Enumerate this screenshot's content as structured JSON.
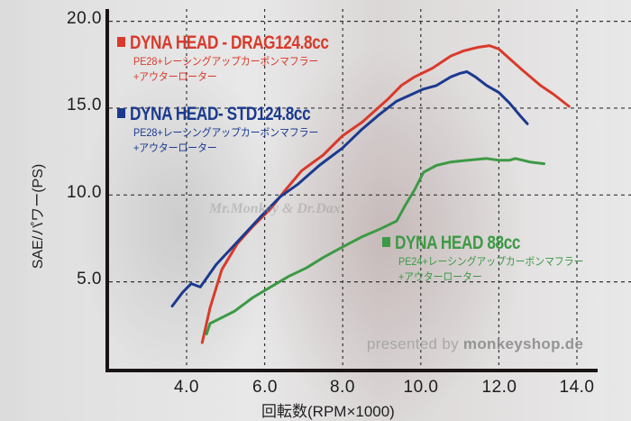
{
  "chart_data": {
    "type": "line",
    "title": "",
    "xlabel": "回転数(RPM×1000)",
    "ylabel": "SAE/パワー(PS)",
    "xlim": [
      3.0,
      14.5
    ],
    "ylim": [
      0,
      20.5
    ],
    "x_ticks": [
      "4.0",
      "6.0",
      "8.0",
      "10.0",
      "12.0",
      "14.0"
    ],
    "y_ticks": [
      "5.0",
      "10.0",
      "15.0",
      "20.0"
    ],
    "grid": true,
    "legend_position": "inline",
    "series": [
      {
        "name": "DYNA HEAD - DRAG124.8cc",
        "description": [
          "PE28+レーシングアップカーボンマフラー",
          "+アウターローター"
        ],
        "color": "#d93a2b",
        "points": [
          [
            4.4,
            1.5
          ],
          [
            4.6,
            3.5
          ],
          [
            4.9,
            5.7
          ],
          [
            5.3,
            7.2
          ],
          [
            5.7,
            8.2
          ],
          [
            6.15,
            9.2
          ],
          [
            6.5,
            10.2
          ],
          [
            6.95,
            11.4
          ],
          [
            7.5,
            12.3
          ],
          [
            7.99,
            13.4
          ],
          [
            8.5,
            14.2
          ],
          [
            9.15,
            15.5
          ],
          [
            9.5,
            16.3
          ],
          [
            9.84,
            16.8
          ],
          [
            10.3,
            17.3
          ],
          [
            10.77,
            18.0
          ],
          [
            11.1,
            18.3
          ],
          [
            11.46,
            18.5
          ],
          [
            11.76,
            18.6
          ],
          [
            12.0,
            18.4
          ],
          [
            12.15,
            18.1
          ],
          [
            12.6,
            17.2
          ],
          [
            13.07,
            16.3
          ],
          [
            13.4,
            15.8
          ],
          [
            13.8,
            15.1
          ]
        ]
      },
      {
        "name": "DYNA HEAD- STD124.8cc",
        "description": [
          "PE28+レーシングアップカーボンマフラー",
          "+アウターローター"
        ],
        "color": "#1b3a8f",
        "points": [
          [
            3.63,
            3.6
          ],
          [
            3.9,
            4.4
          ],
          [
            4.12,
            4.9
          ],
          [
            4.35,
            4.7
          ],
          [
            4.76,
            6.0
          ],
          [
            5.3,
            7.3
          ],
          [
            5.92,
            8.8
          ],
          [
            6.4,
            9.9
          ],
          [
            6.84,
            10.6
          ],
          [
            7.4,
            11.7
          ],
          [
            7.99,
            12.7
          ],
          [
            8.5,
            13.8
          ],
          [
            8.92,
            14.6
          ],
          [
            9.38,
            15.4
          ],
          [
            10.07,
            16.1
          ],
          [
            10.4,
            16.3
          ],
          [
            10.77,
            16.8
          ],
          [
            11.0,
            17.0
          ],
          [
            11.18,
            17.1
          ],
          [
            11.4,
            16.8
          ],
          [
            11.69,
            16.3
          ],
          [
            12.0,
            15.9
          ],
          [
            12.27,
            15.3
          ],
          [
            12.57,
            14.5
          ],
          [
            12.73,
            14.1
          ]
        ]
      },
      {
        "name": "DYNA HEAD  88cc",
        "description": [
          "PE24+レーシングアップカーボンマフラー",
          "+アウターローター"
        ],
        "color": "#3c9a45",
        "points": [
          [
            4.51,
            2.0
          ],
          [
            4.6,
            2.6
          ],
          [
            5.22,
            3.3
          ],
          [
            5.7,
            4.1
          ],
          [
            6.15,
            4.7
          ],
          [
            6.6,
            5.3
          ],
          [
            7.07,
            5.8
          ],
          [
            7.5,
            6.4
          ],
          [
            7.99,
            7.0
          ],
          [
            8.5,
            7.6
          ],
          [
            8.92,
            8.0
          ],
          [
            9.38,
            8.5
          ],
          [
            9.6,
            9.4
          ],
          [
            9.84,
            10.3
          ],
          [
            10.07,
            11.3
          ],
          [
            10.4,
            11.7
          ],
          [
            10.77,
            11.9
          ],
          [
            11.2,
            12.0
          ],
          [
            11.69,
            12.1
          ],
          [
            12.0,
            12.0
          ],
          [
            12.27,
            12.0
          ],
          [
            12.42,
            12.1
          ],
          [
            12.8,
            11.9
          ],
          [
            13.16,
            11.8
          ]
        ]
      }
    ]
  },
  "axes": {
    "y_ticks": [
      {
        "label": "20.0",
        "value": 20
      },
      {
        "label": "15.0",
        "value": 15
      },
      {
        "label": "10.0",
        "value": 10
      },
      {
        "label": "5.0",
        "value": 5
      }
    ],
    "x_ticks": [
      {
        "label": "4.0",
        "value": 4
      },
      {
        "label": "6.0",
        "value": 6
      },
      {
        "label": "8.0",
        "value": 8
      },
      {
        "label": "10.0",
        "value": 10
      },
      {
        "label": "12.0",
        "value": 12
      },
      {
        "label": "14.0",
        "value": 14
      }
    ],
    "xlabel": "回転数(RPM×1000)",
    "ylabel": "SAE/パワー(PS)"
  },
  "legend": [
    {
      "title": "DYNA HEAD - DRAG124.8cc",
      "line1": "PE28+レーシングアップカーボンマフラー",
      "line2": "+アウターローター",
      "color": "#d93a2b"
    },
    {
      "title": "DYNA HEAD- STD124.8cc",
      "line1": "PE28+レーシングアップカーボンマフラー",
      "line2": "+アウターローター",
      "color": "#1b3a8f"
    },
    {
      "title": "DYNA HEAD  88cc",
      "line1": "PE24+レーシングアップカーボンマフラー",
      "line2": "+アウターローター",
      "color": "#3c9a45"
    }
  ],
  "watermarks": {
    "center": "Mr.Monkey & Dr.Dax",
    "presented_prefix": "presented by ",
    "presented_brand": "monkeyshop.de"
  }
}
